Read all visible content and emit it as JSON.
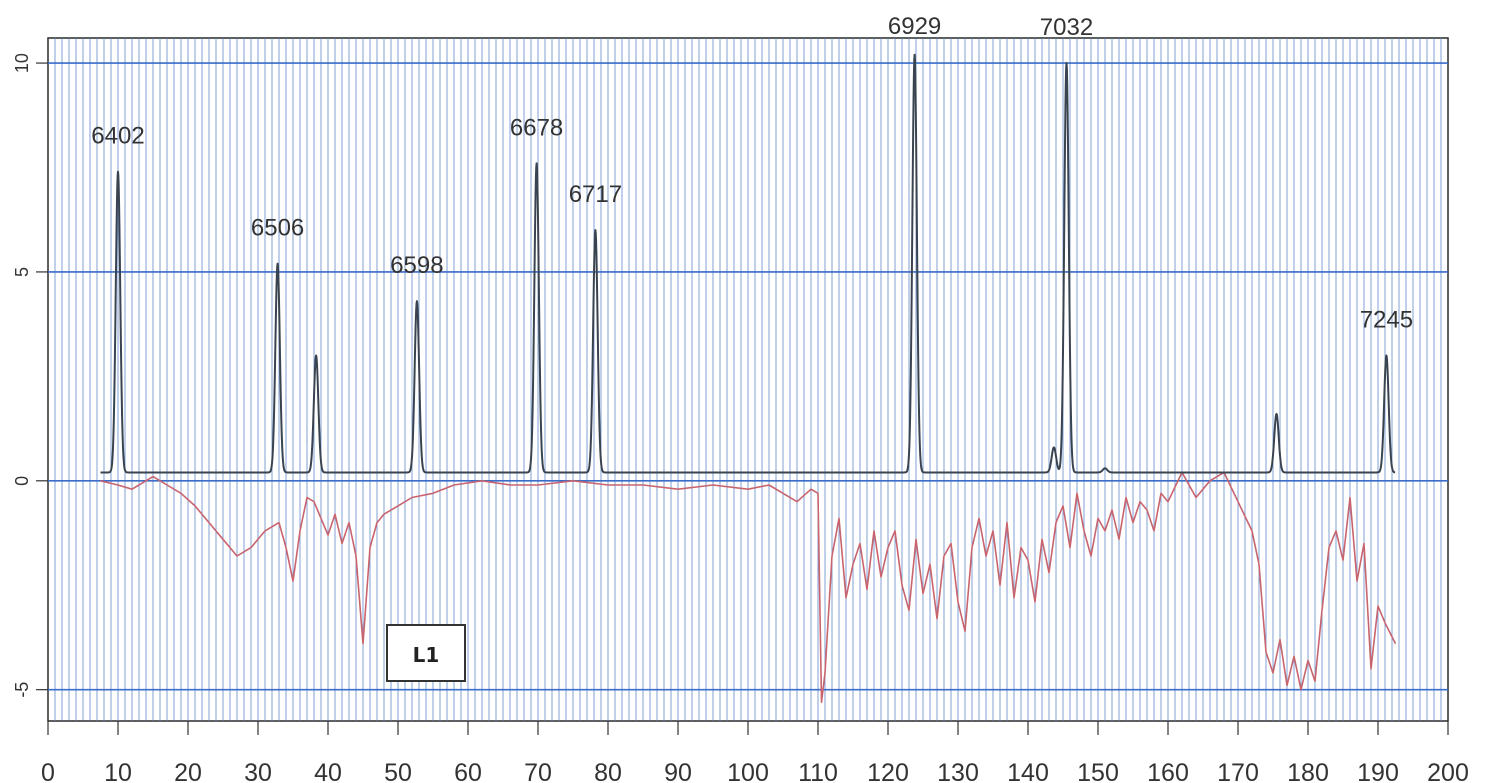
{
  "chart_data": {
    "type": "line",
    "title": "",
    "xlabel": "",
    "ylabel": "",
    "xlim": [
      0,
      200
    ],
    "ylim": [
      -5.75,
      10.6
    ],
    "x_ticks": [
      0,
      10,
      20,
      30,
      40,
      50,
      60,
      70,
      80,
      90,
      100,
      110,
      120,
      130,
      140,
      150,
      160,
      170,
      180,
      190,
      200
    ],
    "y_ticks": [
      -5,
      0,
      5,
      10
    ],
    "y_tick_labels": [
      "-5",
      "0",
      "5",
      "10"
    ],
    "grid": {
      "vertical_minor_step": 1,
      "horizontal_major": true
    },
    "legend": {
      "label": "L1",
      "placement": "bottom-left"
    },
    "colors": {
      "spectrum": "#3a4450",
      "difference": "#c8646e",
      "grid_minor": "#5a82c8",
      "grid_major": "#3a6cc8",
      "background": "#ffffff"
    },
    "series": [
      {
        "role": "spectrum",
        "baseline": 0.2,
        "x_range": [
          7.5,
          192.5
        ],
        "peaks": [
          {
            "x": 10.0,
            "y": 7.4,
            "label": "6402"
          },
          {
            "x": 32.8,
            "y": 5.2,
            "label": "6506"
          },
          {
            "x": 38.3,
            "y": 3.0
          },
          {
            "x": 52.7,
            "y": 4.3,
            "label": "6598"
          },
          {
            "x": 69.8,
            "y": 7.6,
            "label": "6678"
          },
          {
            "x": 78.2,
            "y": 6.0,
            "label": "6717"
          },
          {
            "x": 123.8,
            "y": 10.2,
            "label": "6929"
          },
          {
            "x": 143.7,
            "y": 0.8
          },
          {
            "x": 145.5,
            "y": 10.0,
            "label": "7032"
          },
          {
            "x": 151.0,
            "y": 0.3
          },
          {
            "x": 175.5,
            "y": 1.6
          },
          {
            "x": 191.2,
            "y": 3.0,
            "label": "7245"
          }
        ]
      },
      {
        "role": "difference",
        "x": [
          7.5,
          10,
          12,
          15,
          17,
          19,
          21,
          23,
          25,
          27,
          29,
          31,
          33,
          34,
          35,
          36,
          37,
          38,
          39,
          40,
          41,
          42,
          43,
          44,
          45,
          46,
          47,
          48,
          50,
          52,
          55,
          58,
          62,
          66,
          70,
          75,
          80,
          85,
          90,
          95,
          100,
          103,
          105,
          107,
          109,
          110,
          110.5,
          111,
          112,
          113,
          114,
          115,
          116,
          117,
          118,
          119,
          120,
          121,
          122,
          123,
          124,
          125,
          126,
          127,
          128,
          129,
          130,
          131,
          132,
          133,
          134,
          135,
          136,
          137,
          138,
          139,
          140,
          141,
          142,
          143,
          144,
          145,
          146,
          147,
          148,
          149,
          150,
          151,
          152,
          153,
          154,
          155,
          156,
          157,
          158,
          159,
          160,
          162,
          164,
          166,
          168,
          170,
          172,
          173,
          174,
          175,
          176,
          177,
          178,
          179,
          180,
          181,
          182,
          183,
          184,
          185,
          186,
          187,
          188,
          189,
          190,
          191,
          192.5
        ],
        "y": [
          0.0,
          -0.1,
          -0.2,
          0.1,
          -0.1,
          -0.3,
          -0.6,
          -1.0,
          -1.4,
          -1.8,
          -1.6,
          -1.2,
          -1.0,
          -1.6,
          -2.4,
          -1.2,
          -0.4,
          -0.5,
          -0.9,
          -1.3,
          -0.8,
          -1.5,
          -1.0,
          -1.8,
          -3.9,
          -1.6,
          -1.0,
          -0.8,
          -0.6,
          -0.4,
          -0.3,
          -0.1,
          0.0,
          -0.1,
          -0.1,
          0.0,
          -0.1,
          -0.1,
          -0.2,
          -0.1,
          -0.2,
          -0.1,
          -0.3,
          -0.5,
          -0.2,
          -0.3,
          -5.3,
          -4.6,
          -1.8,
          -0.9,
          -2.8,
          -2.0,
          -1.5,
          -2.6,
          -1.2,
          -2.3,
          -1.6,
          -1.2,
          -2.5,
          -3.1,
          -1.4,
          -2.7,
          -2.0,
          -3.3,
          -1.8,
          -1.5,
          -2.9,
          -3.6,
          -1.6,
          -0.9,
          -1.8,
          -1.2,
          -2.5,
          -1.0,
          -2.8,
          -1.6,
          -1.9,
          -2.9,
          -1.4,
          -2.2,
          -1.0,
          -0.6,
          -1.6,
          -0.3,
          -1.2,
          -1.8,
          -0.9,
          -1.2,
          -0.7,
          -1.4,
          -0.4,
          -1.0,
          -0.5,
          -0.7,
          -1.2,
          -0.3,
          -0.5,
          0.2,
          -0.4,
          0.0,
          0.2,
          -0.5,
          -1.2,
          -2.0,
          -4.1,
          -4.6,
          -3.8,
          -4.9,
          -4.2,
          -5.0,
          -4.3,
          -4.8,
          -3.1,
          -1.6,
          -1.2,
          -1.9,
          -0.4,
          -2.4,
          -1.5,
          -4.5,
          -3.0,
          -3.4,
          -3.9
        ]
      }
    ]
  }
}
